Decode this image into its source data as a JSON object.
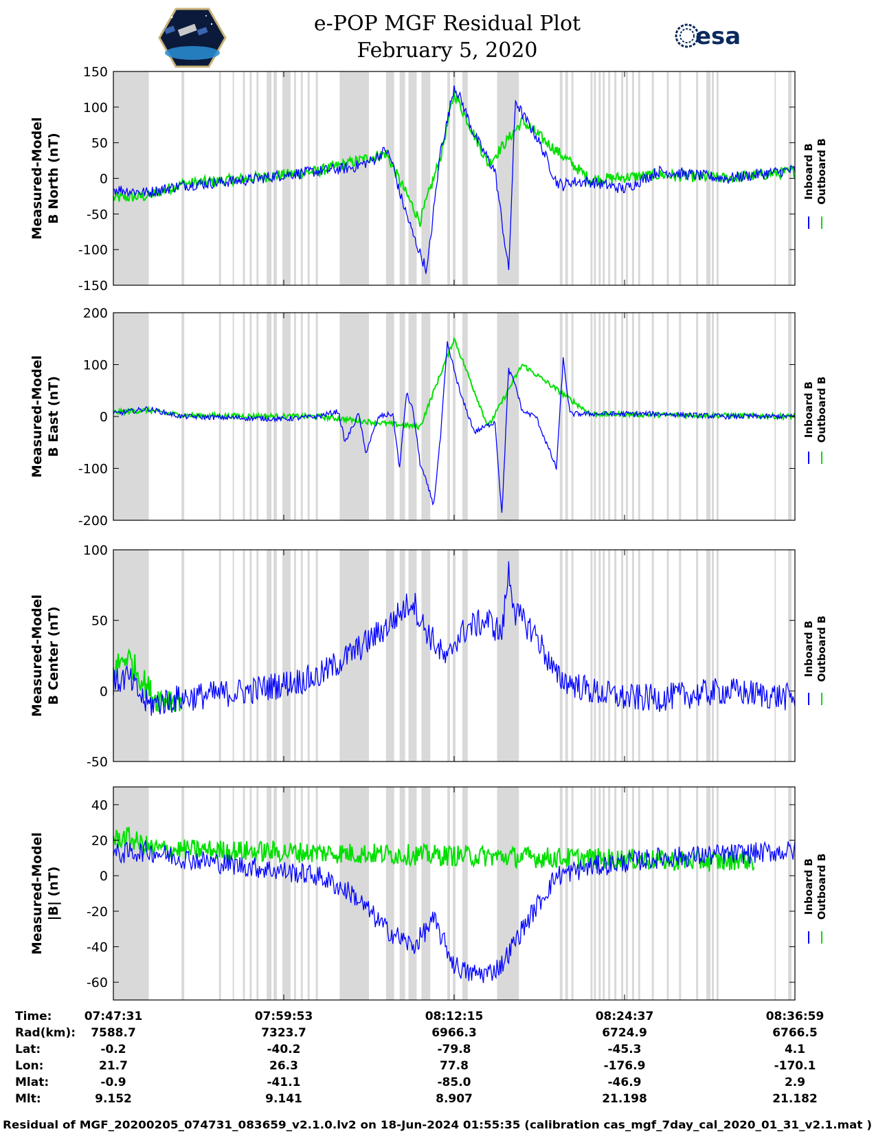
{
  "title": {
    "line1": "e-POP MGF Residual Plot",
    "line2": "February 5, 2020"
  },
  "logos": {
    "left_icon": "cassiope-mission-logo",
    "right_text": "esa"
  },
  "colors": {
    "inboard": "#0000ff",
    "outboard": "#00e000",
    "gap_shade": "#d9d9d9"
  },
  "legend": {
    "inboard_label": "Inboard B",
    "outboard_label": "Outboard B"
  },
  "chart_data": [
    {
      "type": "line",
      "ylabel_line1": "Measured-Model",
      "ylabel_line2": "B North (nT)",
      "ylim": [
        -150,
        150
      ],
      "yticks": [
        150,
        100,
        50,
        0,
        -50,
        -100,
        -150
      ],
      "series": [
        {
          "name": "Inboard B",
          "x": [
            0,
            0.05,
            0.1,
            0.2,
            0.25,
            0.3,
            0.35,
            0.38,
            0.4,
            0.41,
            0.42,
            0.44,
            0.46,
            0.48,
            0.49,
            0.5,
            0.51,
            0.53,
            0.56,
            0.58,
            0.59,
            0.6,
            0.62,
            0.63,
            0.65,
            0.66,
            0.67,
            0.7,
            0.75,
            0.8,
            0.9,
            1.0
          ],
          "y": [
            -15,
            -20,
            -10,
            -2,
            5,
            10,
            15,
            25,
            40,
            20,
            -20,
            -80,
            -130,
            40,
            80,
            130,
            110,
            60,
            10,
            -130,
            110,
            90,
            60,
            40,
            -5,
            -10,
            -5,
            -5,
            -15,
            10,
            0,
            12
          ]
        },
        {
          "name": "Outboard B",
          "x": [
            0,
            0.05,
            0.1,
            0.2,
            0.3,
            0.4,
            0.45,
            0.48,
            0.5,
            0.55,
            0.6,
            0.7,
            0.8,
            0.9,
            1.0
          ],
          "y": [
            -28,
            -25,
            -8,
            0,
            10,
            35,
            -60,
            30,
            120,
            20,
            80,
            -2,
            5,
            0,
            10
          ]
        }
      ],
      "noise": 8
    },
    {
      "type": "line",
      "ylabel_line1": "Measured-Model",
      "ylabel_line2": "B East (nT)",
      "ylim": [
        -200,
        200
      ],
      "yticks": [
        200,
        100,
        0,
        -100,
        -200
      ],
      "series": [
        {
          "name": "Inboard B",
          "x": [
            0,
            0.05,
            0.1,
            0.25,
            0.3,
            0.33,
            0.34,
            0.36,
            0.37,
            0.39,
            0.41,
            0.42,
            0.43,
            0.44,
            0.45,
            0.47,
            0.48,
            0.49,
            0.5,
            0.51,
            0.53,
            0.56,
            0.57,
            0.58,
            0.59,
            0.6,
            0.62,
            0.65,
            0.66,
            0.67,
            0.7,
            0.8,
            0.9,
            1.0
          ],
          "y": [
            5,
            15,
            0,
            -5,
            0,
            10,
            -50,
            5,
            -70,
            0,
            5,
            -100,
            45,
            10,
            -90,
            -170,
            -40,
            140,
            90,
            40,
            -30,
            -10,
            -190,
            90,
            60,
            10,
            0,
            -100,
            110,
            5,
            5,
            5,
            0,
            0
          ]
        },
        {
          "name": "Outboard B",
          "x": [
            0,
            0.05,
            0.1,
            0.3,
            0.45,
            0.5,
            0.55,
            0.6,
            0.7,
            1.0
          ],
          "y": [
            8,
            12,
            2,
            0,
            -20,
            150,
            -20,
            100,
            5,
            0
          ]
        }
      ],
      "noise": 5
    },
    {
      "type": "line",
      "ylabel_line1": "Measured-Model",
      "ylabel_line2": "B Center (nT)",
      "ylim": [
        -50,
        100
      ],
      "yticks": [
        100,
        50,
        0,
        -50
      ],
      "series": [
        {
          "name": "Inboard B",
          "x": [
            0,
            0.02,
            0.05,
            0.1,
            0.2,
            0.25,
            0.3,
            0.33,
            0.36,
            0.4,
            0.44,
            0.45,
            0.49,
            0.5,
            0.52,
            0.55,
            0.57,
            0.58,
            0.59,
            0.62,
            0.65,
            0.7,
            0.75,
            0.8,
            0.9,
            1.0
          ],
          "y": [
            5,
            10,
            -10,
            -5,
            0,
            5,
            10,
            20,
            30,
            45,
            65,
            50,
            20,
            35,
            45,
            50,
            40,
            85,
            55,
            40,
            10,
            0,
            -5,
            -5,
            0,
            -5
          ]
        },
        {
          "name": "Outboard B",
          "x": [
            0,
            0.02,
            0.04,
            0.06,
            0.1
          ],
          "y": [
            15,
            25,
            10,
            -5,
            -5
          ]
        }
      ],
      "noise": 10
    },
    {
      "type": "line",
      "ylabel_line1": "Measured-Model",
      "ylabel_line2": "|B| (nT)",
      "ylim": [
        -70,
        50
      ],
      "yticks": [
        40,
        20,
        0,
        -20,
        -40,
        -60
      ],
      "series": [
        {
          "name": "Inboard B",
          "x": [
            0,
            0.05,
            0.1,
            0.2,
            0.3,
            0.35,
            0.4,
            0.44,
            0.47,
            0.5,
            0.52,
            0.55,
            0.57,
            0.6,
            0.65,
            0.7,
            0.8,
            0.9,
            1.0
          ],
          "y": [
            12,
            14,
            10,
            5,
            0,
            -10,
            -30,
            -40,
            -25,
            -50,
            -55,
            -55,
            -50,
            -30,
            0,
            5,
            10,
            12,
            14
          ]
        },
        {
          "name": "Outboard B",
          "x": [
            0,
            0.02,
            0.04,
            0.06,
            0.9,
            0.92,
            0.94
          ],
          "y": [
            20,
            22,
            18,
            15,
            8,
            10,
            8
          ]
        }
      ],
      "noise": 6
    }
  ],
  "gap_regions": [
    [
      0.0,
      0.052
    ],
    [
      0.1,
      0.104
    ],
    [
      0.155,
      0.158
    ],
    [
      0.175,
      0.177
    ],
    [
      0.19,
      0.193
    ],
    [
      0.2,
      0.203
    ],
    [
      0.21,
      0.213
    ],
    [
      0.225,
      0.232
    ],
    [
      0.235,
      0.24
    ],
    [
      0.248,
      0.26
    ],
    [
      0.265,
      0.268
    ],
    [
      0.275,
      0.278
    ],
    [
      0.285,
      0.288
    ],
    [
      0.297,
      0.3
    ],
    [
      0.332,
      0.375
    ],
    [
      0.4,
      0.412
    ],
    [
      0.42,
      0.428
    ],
    [
      0.433,
      0.445
    ],
    [
      0.452,
      0.465
    ],
    [
      0.49,
      0.494
    ],
    [
      0.498,
      0.502
    ],
    [
      0.512,
      0.52
    ],
    [
      0.563,
      0.595
    ],
    [
      0.655,
      0.659
    ],
    [
      0.663,
      0.667
    ],
    [
      0.672,
      0.675
    ],
    [
      0.7,
      0.703
    ],
    [
      0.705,
      0.708
    ],
    [
      0.712,
      0.715
    ],
    [
      0.718,
      0.721
    ],
    [
      0.726,
      0.729
    ],
    [
      0.735,
      0.738
    ],
    [
      0.745,
      0.748
    ],
    [
      0.752,
      0.755
    ],
    [
      0.761,
      0.764
    ],
    [
      0.77,
      0.773
    ],
    [
      0.79,
      0.793
    ],
    [
      0.812,
      0.815
    ],
    [
      0.83,
      0.833
    ],
    [
      0.855,
      0.858
    ],
    [
      0.87,
      0.876
    ],
    [
      0.878,
      0.881
    ],
    [
      0.885,
      0.888
    ],
    [
      0.97,
      0.972
    ],
    [
      0.99,
      0.995
    ]
  ],
  "xtick_positions": [
    0,
    0.25,
    0.5,
    0.75,
    1.0
  ],
  "info_table": {
    "row_labels": [
      "Time:",
      "Rad(km):",
      "Lat:",
      "Lon:",
      "Mlat:",
      "Mlt:"
    ],
    "columns": [
      [
        "07:47:31",
        "7588.7",
        "-0.2",
        "21.7",
        "-0.9",
        "9.152"
      ],
      [
        "07:59:53",
        "7323.7",
        "-40.2",
        "26.3",
        "-41.1",
        "9.141"
      ],
      [
        "08:12:15",
        "6966.3",
        "-79.8",
        "77.8",
        "-85.0",
        "8.907"
      ],
      [
        "08:24:37",
        "6724.9",
        "-45.3",
        "-176.9",
        "-46.9",
        "21.198"
      ],
      [
        "08:36:59",
        "6766.5",
        "4.1",
        "-170.1",
        "2.9",
        "21.182"
      ]
    ]
  },
  "footer": "Residual of MGF_20200205_074731_083659_v2.1.0.lv2 on 18-Jun-2024 01:55:35 (calibration cas_mgf_7day_cal_2020_01_31_v2.1.mat )"
}
